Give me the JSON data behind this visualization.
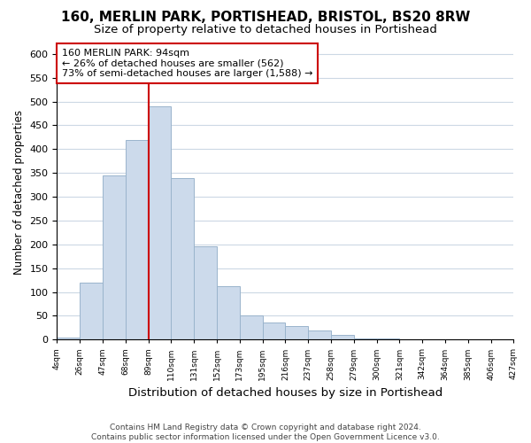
{
  "title": "160, MERLIN PARK, PORTISHEAD, BRISTOL, BS20 8RW",
  "subtitle": "Size of property relative to detached houses in Portishead",
  "xlabel": "Distribution of detached houses by size in Portishead",
  "ylabel": "Number of detached properties",
  "bar_color": "#ccdaeb",
  "bar_edge_color": "#9ab4cc",
  "bin_labels": [
    "4sqm",
    "26sqm",
    "47sqm",
    "68sqm",
    "89sqm",
    "110sqm",
    "131sqm",
    "152sqm",
    "173sqm",
    "195sqm",
    "216sqm",
    "237sqm",
    "258sqm",
    "279sqm",
    "300sqm",
    "321sqm",
    "342sqm",
    "364sqm",
    "385sqm",
    "406sqm",
    "427sqm"
  ],
  "bar_heights": [
    5,
    120,
    345,
    420,
    490,
    340,
    195,
    113,
    50,
    35,
    28,
    20,
    10,
    3,
    2,
    1,
    1,
    0,
    0,
    0
  ],
  "ylim": [
    0,
    620
  ],
  "yticks": [
    0,
    50,
    100,
    150,
    200,
    250,
    300,
    350,
    400,
    450,
    500,
    550,
    600
  ],
  "vline_x_idx": 4,
  "annotation_title": "160 MERLIN PARK: 94sqm",
  "annotation_line1": "← 26% of detached houses are smaller (562)",
  "annotation_line2": "73% of semi-detached houses are larger (1,588) →",
  "annotation_box_color": "#ffffff",
  "annotation_box_edge": "#cc0000",
  "vline_color": "#cc0000",
  "footer1": "Contains HM Land Registry data © Crown copyright and database right 2024.",
  "footer2": "Contains public sector information licensed under the Open Government Licence v3.0.",
  "bg_color": "#ffffff",
  "grid_color": "#ccd8e4",
  "title_fontsize": 11,
  "subtitle_fontsize": 9.5,
  "xlabel_fontsize": 9.5,
  "ylabel_fontsize": 8.5,
  "footer_fontsize": 6.5
}
